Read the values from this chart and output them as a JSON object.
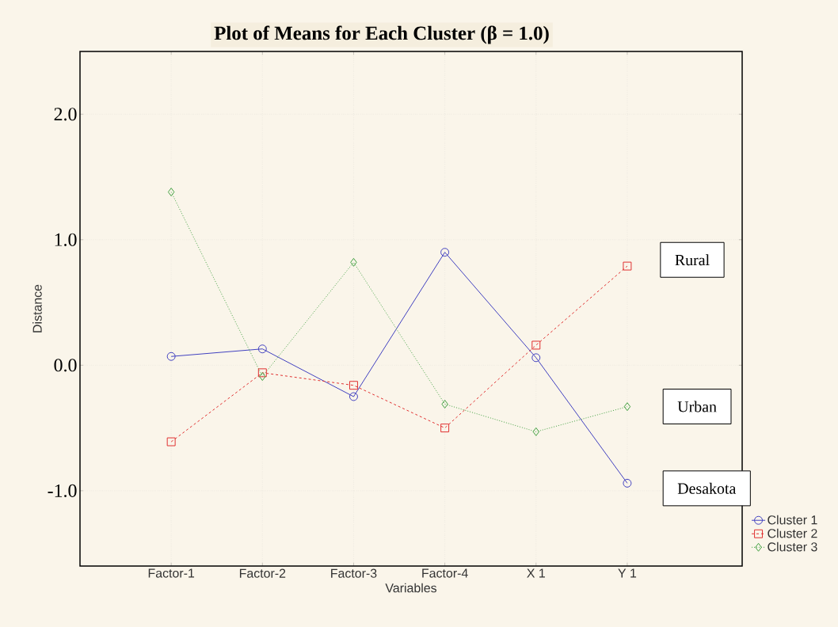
{
  "chart_data": {
    "type": "line",
    "title": "Plot of Means for Each Cluster (β = 1.0)",
    "xlabel": "Variables",
    "ylabel": "Distance",
    "categories": [
      "Factor-1",
      "Factor-2",
      "Factor-3",
      "Factor-4",
      "X 1",
      "Y 1"
    ],
    "series": [
      {
        "name": "Cluster  1",
        "color": "#4040c0",
        "marker": "circle",
        "line_style": "solid",
        "values": [
          0.07,
          0.13,
          -0.25,
          0.9,
          0.06,
          -0.94
        ]
      },
      {
        "name": "Cluster  2",
        "color": "#e03030",
        "marker": "square",
        "line_style": "dashed",
        "values": [
          -0.61,
          -0.06,
          -0.16,
          -0.5,
          0.16,
          0.79
        ]
      },
      {
        "name": "Cluster  3",
        "color": "#40a040",
        "marker": "diamond",
        "line_style": "dotted",
        "values": [
          1.38,
          -0.09,
          0.82,
          -0.31,
          -0.53,
          -0.33
        ]
      }
    ],
    "ylim": [
      -1.6,
      2.5
    ],
    "yticks": [
      {
        "value": -1,
        "label": "-1.0"
      },
      {
        "value": 0,
        "label": "0.0"
      },
      {
        "value": 1,
        "label": "1.0"
      },
      {
        "value": 2,
        "label": "2.0"
      }
    ],
    "grid": true,
    "legend": "bottom right",
    "annotations": [
      "Rural",
      "Urban",
      "Desakota"
    ]
  }
}
